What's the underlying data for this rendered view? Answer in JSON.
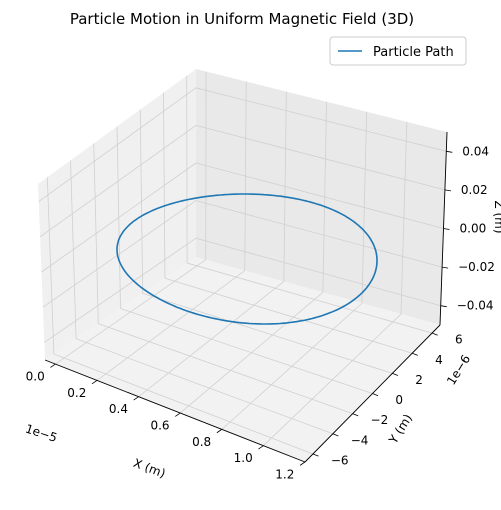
{
  "chart_data": {
    "type": "line",
    "projection": "3d",
    "title": "Particle Motion in Uniform Magnetic Field (3D)",
    "xlabel": "X (m)",
    "ylabel": "Y (m)",
    "zlabel": "Z (m)",
    "x_offset_label": "1e−5",
    "y_offset_label": "1e−6",
    "x_ticks": [
      "0.0",
      "0.2",
      "0.4",
      "0.6",
      "0.8",
      "1.0",
      "1.2"
    ],
    "y_ticks": [
      "−6",
      "−4",
      "−2",
      "0",
      "2",
      "4",
      "6"
    ],
    "z_ticks": [
      "−0.04",
      "−0.02",
      "0.00",
      "0.02",
      "0.04"
    ],
    "xlim": [
      -5e-07,
      1.2e-05
    ],
    "ylim": [
      -6.8e-06,
      6.8e-06
    ],
    "zlim": [
      -0.05,
      0.05
    ],
    "grid": true,
    "legend_position": "top-right",
    "series": [
      {
        "name": "Particle Path",
        "color": "#1f77b4",
        "shape": "circle",
        "center": {
          "x": 5.65e-06,
          "y": 0,
          "z": 0
        },
        "radius_x": 5.65e-06,
        "radius_y": 6e-06,
        "z": 0
      }
    ]
  }
}
